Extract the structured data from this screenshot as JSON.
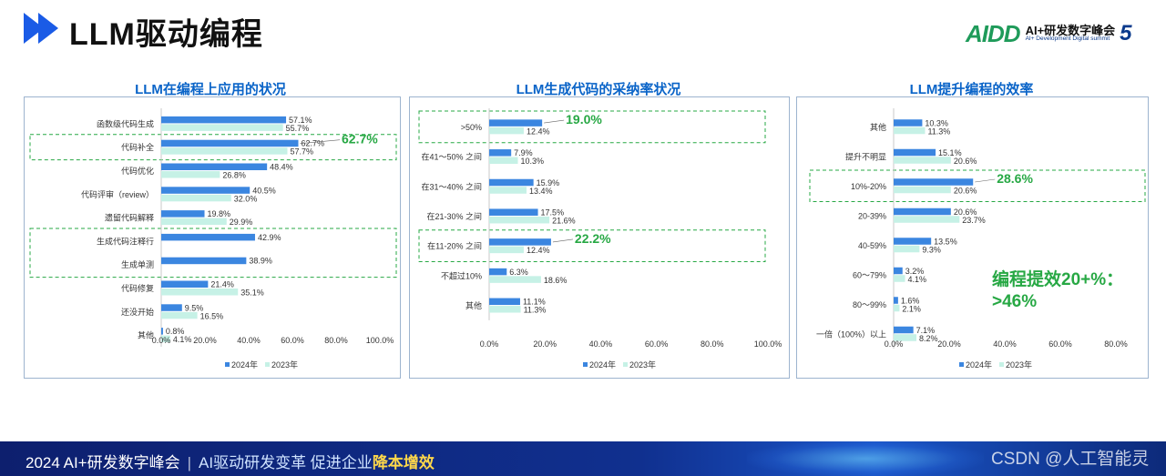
{
  "header": {
    "title": "LLM驱动编程",
    "logo_mark": "AIDD",
    "logo_cn": "AI+研发数字峰会",
    "logo_en": "AI+ Development Digital summit",
    "logo_num": "5"
  },
  "colors": {
    "series_2024": "#3b86e0",
    "series_2023": "#c6f1e6",
    "highlight": "#27a844",
    "title": "#0a64c8"
  },
  "chart_data": [
    {
      "type": "bar",
      "title": "LLM在编程上应用的状况",
      "categories": [
        "函数级代码生成",
        "代码补全",
        "代码优化",
        "代码评审（review）",
        "遗留代码解释",
        "生成代码注释行",
        "生成单测",
        "代码修复",
        "还没开始",
        "其他"
      ],
      "series": [
        {
          "name": "2024年",
          "values": [
            57.1,
            62.7,
            48.4,
            40.5,
            19.8,
            42.9,
            38.9,
            21.4,
            9.5,
            0.8
          ],
          "labels": [
            "57.1%",
            "62.7%",
            "48.4%",
            "40.5%",
            "19.8%",
            "42.9%",
            "38.9%",
            "21.4%",
            "9.5%",
            "0.8%"
          ]
        },
        {
          "name": "2023年",
          "values": [
            55.7,
            57.7,
            26.8,
            32.0,
            29.9,
            null,
            null,
            35.1,
            16.5,
            4.1
          ],
          "labels": [
            "55.7%",
            "57.7%",
            "26.8%",
            "32.0%",
            "29.9%",
            "",
            "",
            "35.1%",
            "16.5%",
            "4.1%"
          ]
        }
      ],
      "highlight_label": {
        "index": 1,
        "text": "62.7%"
      },
      "xlim": [
        0,
        100
      ],
      "xticks": [
        "0.0%",
        "20.0%",
        "40.0%",
        "60.0%",
        "80.0%",
        "100.0%"
      ],
      "legend": [
        "2024年",
        "2023年"
      ]
    },
    {
      "type": "bar",
      "title": "LLM生成代码的采纳率状况",
      "categories": [
        ">50%",
        "在41～50% 之间",
        "在31～40% 之间",
        "在21-30% 之间",
        "在11-20% 之间",
        "不超过10%",
        "其他"
      ],
      "series": [
        {
          "name": "2024年",
          "values": [
            19.0,
            7.9,
            15.9,
            17.5,
            22.2,
            6.3,
            11.1
          ],
          "labels": [
            "19.0%",
            "7.9%",
            "15.9%",
            "17.5%",
            "22.2%",
            "6.3%",
            "11.1%"
          ]
        },
        {
          "name": "2023年",
          "values": [
            12.4,
            10.3,
            13.4,
            21.6,
            12.4,
            18.6,
            11.3
          ],
          "labels": [
            "12.4%",
            "10.3%",
            "13.4%",
            "21.6%",
            "12.4%",
            "18.6%",
            "11.3%"
          ]
        }
      ],
      "xlim": [
        0,
        100
      ],
      "xticks": [
        "0.0%",
        "20.0%",
        "40.0%",
        "60.0%",
        "80.0%",
        "100.0%"
      ],
      "legend": [
        "2024年",
        "2023年"
      ]
    },
    {
      "type": "bar",
      "title": "LLM提升编程的效率",
      "categories": [
        "其他",
        "提升不明显",
        "10%-20%",
        "20-39%",
        "40-59%",
        "60～79%",
        "80～99%",
        "一倍（100%）以上"
      ],
      "series": [
        {
          "name": "2024年",
          "values": [
            10.3,
            15.1,
            28.6,
            20.6,
            13.5,
            3.2,
            1.6,
            7.1
          ],
          "labels": [
            "10.3%",
            "15.1%",
            "28.6%",
            "20.6%",
            "13.5%",
            "3.2%",
            "1.6%",
            "7.1%"
          ]
        },
        {
          "name": "2023年",
          "values": [
            11.3,
            20.6,
            20.6,
            23.7,
            9.3,
            4.1,
            2.1,
            8.2
          ],
          "labels": [
            "11.3%",
            "20.6%",
            "20.6%",
            "23.7%",
            "9.3%",
            "4.1%",
            "2.1%",
            "8.2%"
          ]
        }
      ],
      "xlim": [
        0,
        80
      ],
      "xticks": [
        "0.0%",
        "20.0%",
        "40.0%",
        "60.0%",
        "80.0%"
      ],
      "legend": [
        "2024年",
        "2023年"
      ],
      "annotation": [
        "编程提效20+%：",
        ">46%"
      ]
    }
  ],
  "footer": {
    "event": "2024 AI+研发数字峰会",
    "sep": "|",
    "slogan_a": "AI驱动研发变革  促进企业",
    "slogan_b": "降本增效"
  },
  "watermark": "CSDN @人工智能灵"
}
